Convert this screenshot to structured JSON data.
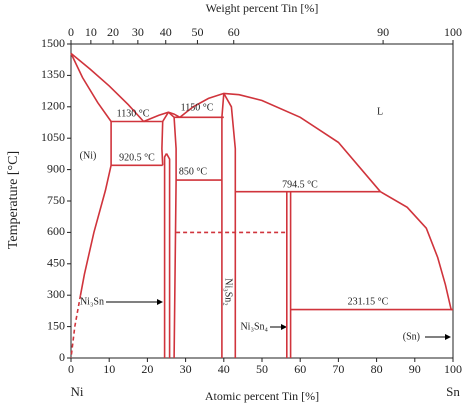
{
  "chart_data": {
    "type": "phase-diagram",
    "xlabel": "Atomic percent Tin [%]",
    "x2label": "Weight percent Tin [%]",
    "ylabel": "Temperature [°C]",
    "xlim": [
      0,
      100
    ],
    "xticks": [
      0,
      10,
      20,
      30,
      40,
      50,
      60,
      70,
      80,
      90,
      100
    ],
    "x2ticks": [
      {
        "value": 0,
        "label": "0"
      },
      {
        "value": 5.2,
        "label": "10"
      },
      {
        "value": 11.0,
        "label": "20"
      },
      {
        "value": 17.5,
        "label": "30"
      },
      {
        "value": 24.8,
        "label": "40"
      },
      {
        "value": 33.1,
        "label": "50"
      },
      {
        "value": 42.6,
        "label": "60"
      },
      {
        "value": 81.7,
        "label": "90"
      },
      {
        "value": 100,
        "label": "100"
      }
    ],
    "ylim": [
      0,
      1500
    ],
    "yticks": [
      0,
      150,
      300,
      450,
      600,
      750,
      900,
      1050,
      1200,
      1350,
      1500
    ],
    "color": "#d0343c",
    "lines": [
      {
        "x": [
          0,
          5,
          10,
          15,
          19
        ],
        "y": [
          1455,
          1380,
          1300,
          1210,
          1130
        ]
      },
      {
        "x": [
          19,
          23,
          25.5,
          27,
          28.5
        ],
        "y": [
          1130,
          1160,
          1174,
          1165,
          1150
        ]
      },
      {
        "x": [
          0,
          3,
          7,
          10.5
        ],
        "y": [
          1455,
          1340,
          1220,
          1130
        ]
      },
      {
        "x": [
          10.5,
          10.5,
          9,
          6,
          3.5,
          2.5
        ],
        "y": [
          1130,
          920.5,
          800,
          600,
          400,
          300
        ]
      },
      {
        "x": [
          2.5,
          1,
          0
        ],
        "y": [
          300,
          150,
          0
        ],
        "dashed": true
      },
      {
        "x": [
          10.5,
          23.8
        ],
        "y": [
          1130,
          1130
        ]
      },
      {
        "x": [
          10.5,
          24
        ],
        "y": [
          920.5,
          920.5
        ]
      },
      {
        "x": [
          25.5,
          24,
          23.8,
          24
        ],
        "y": [
          1174,
          1130,
          1000,
          920.5
        ]
      },
      {
        "x": [
          25.5,
          27,
          27.5,
          27.5,
          27
        ],
        "y": [
          1174,
          1150,
          1000,
          850,
          0
        ]
      },
      {
        "x": [
          24.5,
          24.5,
          25
        ],
        "y": [
          0,
          960,
          977
        ]
      },
      {
        "x": [
          25,
          25.8,
          25.8
        ],
        "y": [
          977,
          950,
          0
        ]
      },
      {
        "x": [
          27,
          40
        ],
        "y": [
          1150,
          1150
        ]
      },
      {
        "x": [
          27.5,
          39.5
        ],
        "y": [
          850,
          850
        ]
      },
      {
        "x": [
          28.5,
          32,
          36,
          40,
          44,
          50,
          60,
          70,
          81
        ],
        "y": [
          1150,
          1200,
          1240,
          1264,
          1258,
          1230,
          1150,
          1030,
          794.5
        ]
      },
      {
        "x": [
          40,
          39.5,
          39.5,
          39.5
        ],
        "y": [
          1264,
          1150,
          850,
          0
        ]
      },
      {
        "x": [
          40,
          42,
          43,
          43,
          43
        ],
        "y": [
          1264,
          1200,
          1000,
          794.5,
          0
        ]
      },
      {
        "x": [
          43,
          81
        ],
        "y": [
          794.5,
          794.5
        ]
      },
      {
        "x": [
          81,
          88,
          93,
          96,
          98,
          99.5,
          100
        ],
        "y": [
          794.5,
          720,
          620,
          480,
          350,
          232,
          231.15
        ]
      },
      {
        "x": [
          56.5,
          56.5
        ],
        "y": [
          0,
          794.5
        ]
      },
      {
        "x": [
          57.5,
          57.5
        ],
        "y": [
          0,
          794.5
        ]
      },
      {
        "x": [
          57.5,
          100
        ],
        "y": [
          231.15,
          231.15
        ]
      },
      {
        "x": [
          27.5,
          56.5
        ],
        "y": [
          600,
          600
        ],
        "dashed": true
      }
    ],
    "annotations": [
      "1130 °C",
      "1150 °C",
      "(Ni)",
      "920.5 °C",
      "850 °C",
      "794.5 °C",
      "L",
      "Ni₃Sn",
      "Ni₃Sn₂",
      "Ni₃Sn₄",
      "231.15 °C",
      "(Sn)",
      "Ni",
      "Sn"
    ]
  }
}
